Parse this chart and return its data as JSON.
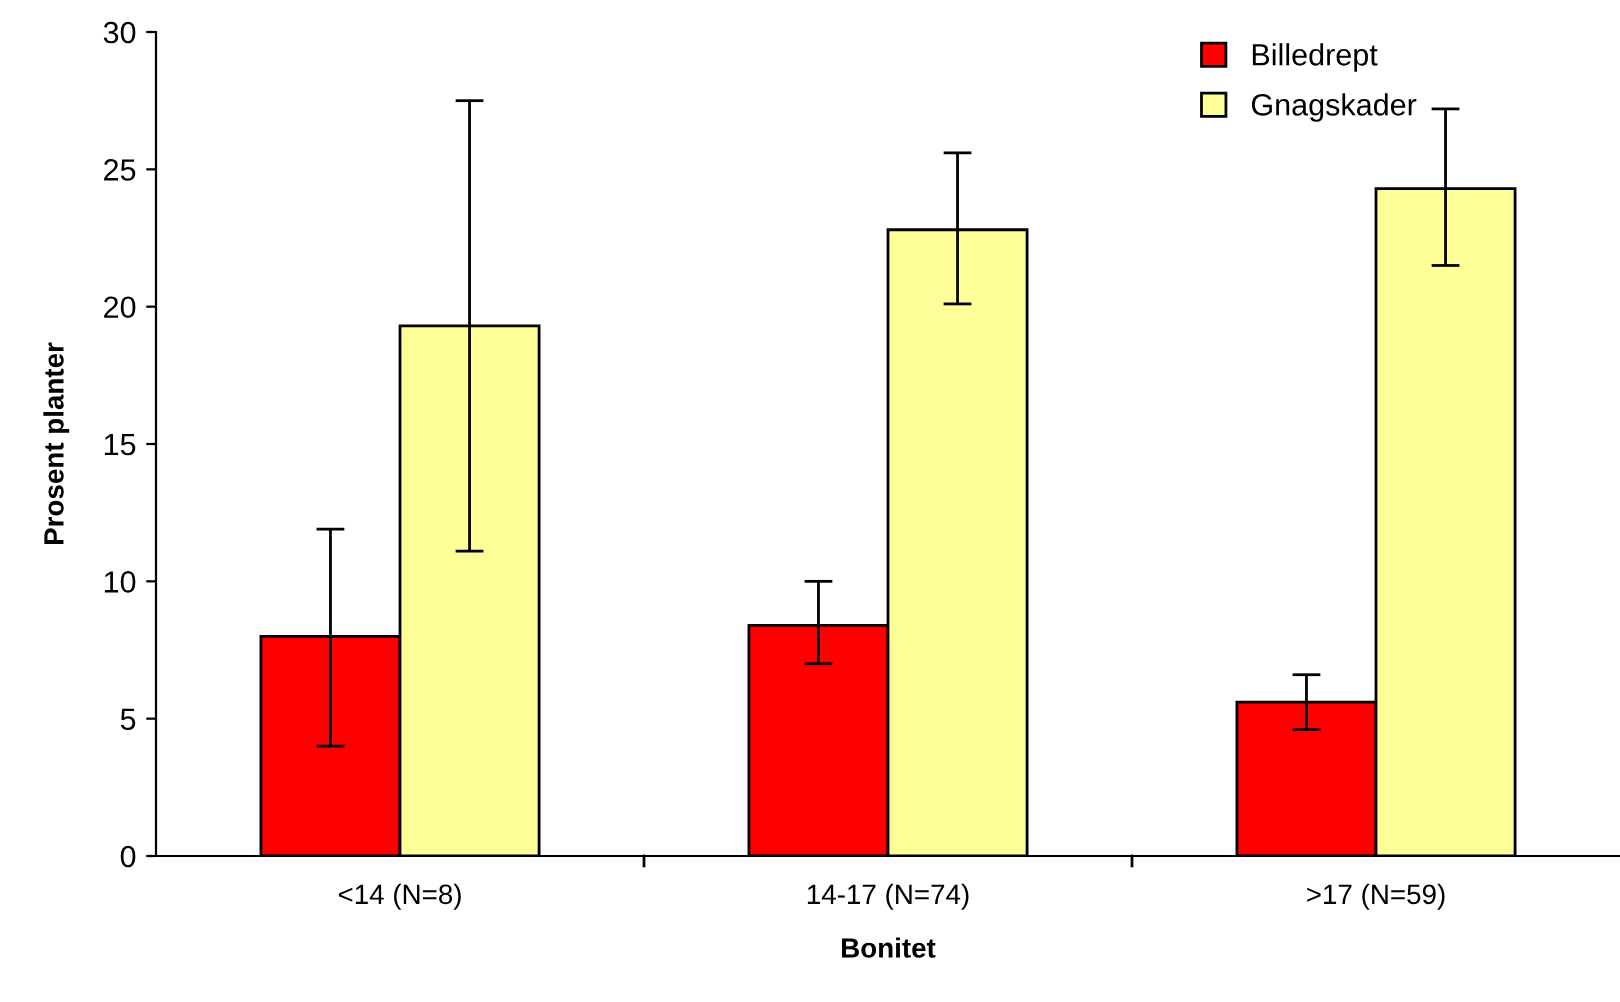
{
  "chart_data": {
    "type": "bar",
    "xlabel": "Bonitet",
    "ylabel": "Prosent planter",
    "categories": [
      "<14 (N=8)",
      "14-17 (N=74)",
      ">17 (N=59)"
    ],
    "series": [
      {
        "name": "Billedrept",
        "color": "#ff0000",
        "values": [
          8.0,
          8.4,
          5.6
        ],
        "errors": [
          [
            4.0,
            11.9
          ],
          [
            7.0,
            10.0
          ],
          [
            4.6,
            6.6
          ]
        ]
      },
      {
        "name": "Gnagskader",
        "color": "#ffff99",
        "values": [
          19.3,
          22.8,
          24.3
        ],
        "errors": [
          [
            11.1,
            27.5
          ],
          [
            20.1,
            25.6
          ],
          [
            21.5,
            27.2
          ]
        ]
      }
    ],
    "ylim": [
      0,
      30
    ],
    "yticks": [
      0,
      5,
      10,
      15,
      20,
      25,
      30
    ],
    "grid": false,
    "legend": "top right"
  }
}
